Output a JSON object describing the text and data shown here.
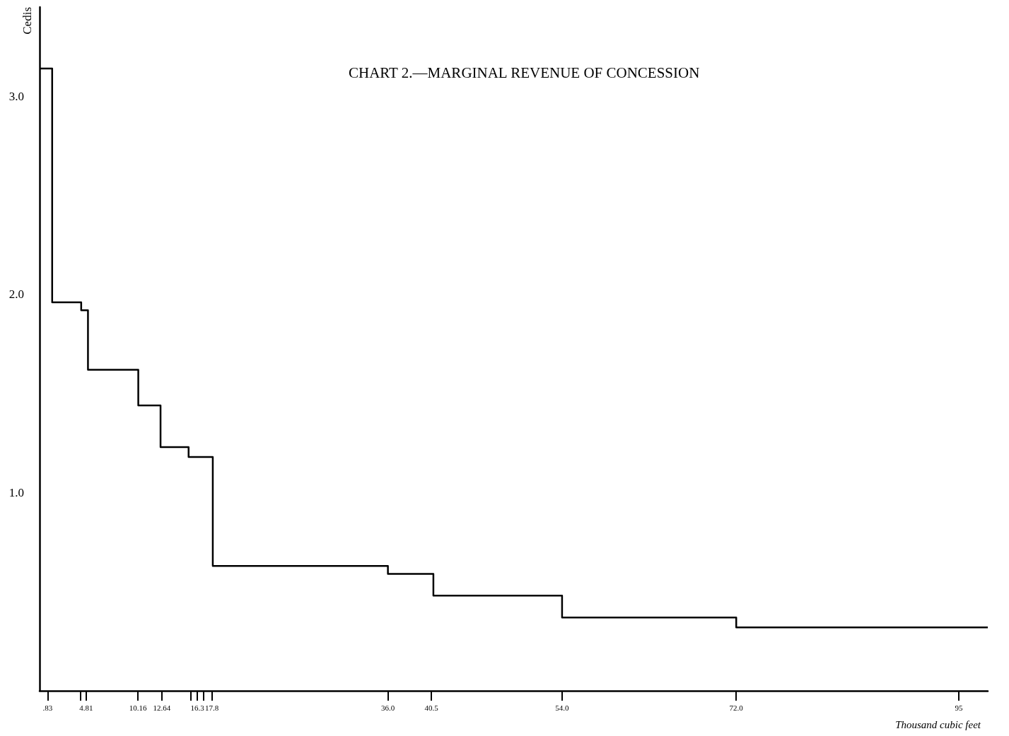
{
  "chart_data": {
    "type": "step",
    "title": "CHART 2.—MARGINAL REVENUE OF CONCESSION",
    "xlabel": "Thousand cubic feet",
    "ylabel": "Cedis",
    "x": [
      0,
      1.3,
      4.3,
      5.0,
      10.2,
      12.5,
      15.4,
      17.9,
      36.0,
      40.7,
      54.0,
      72.0,
      98.0
    ],
    "values": [
      3.14,
      1.96,
      1.92,
      1.62,
      1.44,
      1.23,
      1.18,
      0.63,
      0.59,
      0.48,
      0.37,
      0.32,
      0.32
    ],
    "color": "#000000",
    "line_style": "solid",
    "marker": "none",
    "grid": false,
    "xlim": [
      0,
      98
    ],
    "ylim": [
      0,
      3.45
    ],
    "xticks": [
      {
        "value": 0.83,
        "label": ".83"
      },
      {
        "value": 4.2,
        "label": null
      },
      {
        "value": 4.81,
        "label": "4.81"
      },
      {
        "value": 10.16,
        "label": "10.16"
      },
      {
        "value": 12.64,
        "label": "12.64"
      },
      {
        "value": 15.6,
        "label": null
      },
      {
        "value": 16.3,
        "label": "16.3"
      },
      {
        "value": 16.9,
        "label": null
      },
      {
        "value": 17.8,
        "label": "17.8"
      },
      {
        "value": 36,
        "label": "36.0"
      },
      {
        "value": 40.5,
        "label": "40.5"
      },
      {
        "value": 54,
        "label": "54.0"
      },
      {
        "value": 72,
        "label": "72.0"
      },
      95
    ],
    "yticks": [
      {
        "value": 1,
        "label": "1.0"
      },
      {
        "value": 2,
        "label": "2.0"
      },
      {
        "value": 3,
        "label": "3.0"
      }
    ]
  }
}
